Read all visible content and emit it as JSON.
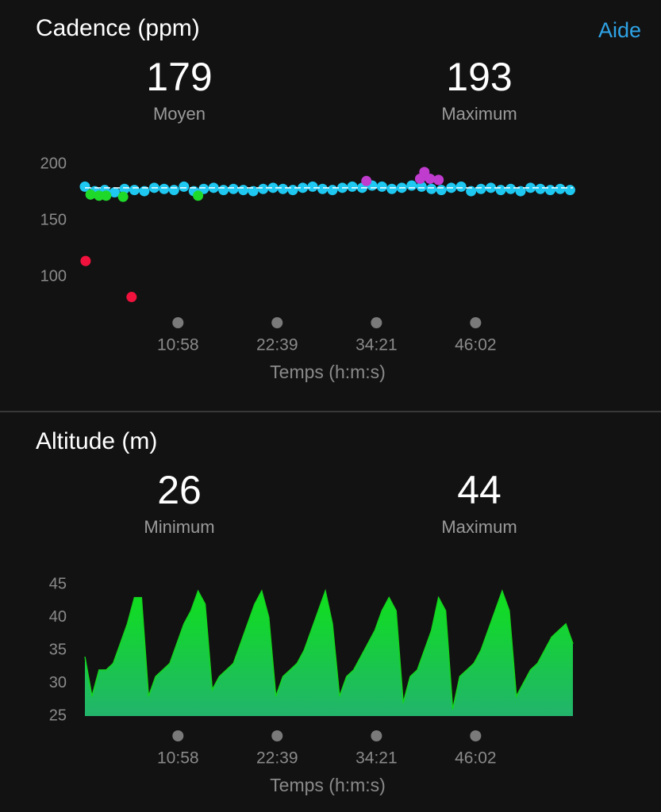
{
  "help": "Aide",
  "chart_data": [
    {
      "type": "scatter",
      "title": "Cadence (ppm)",
      "stats": [
        {
          "value": 179,
          "label": "Moyen"
        },
        {
          "value": 193,
          "label": "Maximum"
        }
      ],
      "x_label": "Temps (h:m:s)",
      "xlim": [
        0,
        3450
      ],
      "xticks": [
        {
          "value": 658,
          "label": "10:58"
        },
        {
          "value": 1359,
          "label": "22:39"
        },
        {
          "value": 2061,
          "label": "34:21"
        },
        {
          "value": 2762,
          "label": "46:02"
        }
      ],
      "ylim": [
        75,
        200
      ],
      "yticks": [
        100,
        150,
        200
      ],
      "series": [
        {
          "color": "#1ec8f0",
          "x": [
            0,
            70,
            140,
            210,
            280,
            350,
            420,
            490,
            560,
            630,
            700,
            770,
            840,
            910,
            980,
            1050,
            1120,
            1190,
            1260,
            1330,
            1400,
            1470,
            1540,
            1610,
            1680,
            1750,
            1820,
            1890,
            1960,
            2030,
            2100,
            2170,
            2240,
            2310,
            2380,
            2450,
            2520,
            2590,
            2660,
            2730,
            2800,
            2870,
            2940,
            3010,
            3080,
            3150,
            3220,
            3290,
            3360,
            3430
          ],
          "values": [
            180,
            176,
            177,
            175,
            178,
            177,
            176,
            179,
            178,
            177,
            180,
            176,
            178,
            179,
            177,
            178,
            177,
            176,
            178,
            179,
            178,
            177,
            179,
            180,
            178,
            177,
            179,
            180,
            179,
            181,
            180,
            178,
            179,
            181,
            180,
            178,
            177,
            179,
            180,
            176,
            178,
            179,
            177,
            178,
            176,
            179,
            178,
            177,
            178,
            177
          ]
        },
        {
          "color": "#1fd92a",
          "x": [
            40,
            100,
            150,
            270,
            800
          ],
          "values": [
            173,
            172,
            172,
            171,
            172
          ]
        },
        {
          "color": "#c03ccf",
          "x": [
            1990,
            2370,
            2400,
            2440,
            2500
          ],
          "values": [
            185,
            187,
            193,
            187,
            186
          ]
        },
        {
          "color": "#f0123c",
          "x": [
            5,
            330
          ],
          "values": [
            114,
            82
          ]
        }
      ]
    },
    {
      "type": "area",
      "title": "Altitude (m)",
      "stats": [
        {
          "value": 26,
          "label": "Minimum"
        },
        {
          "value": 44,
          "label": "Maximum"
        }
      ],
      "x_label": "Temps (h:m:s)",
      "xlim": [
        0,
        3450
      ],
      "xticks": [
        {
          "value": 658,
          "label": "10:58"
        },
        {
          "value": 1359,
          "label": "22:39"
        },
        {
          "value": 2061,
          "label": "34:21"
        },
        {
          "value": 2762,
          "label": "46:02"
        }
      ],
      "ylim": [
        25,
        45
      ],
      "yticks": [
        25,
        30,
        35,
        40,
        45
      ],
      "x": [
        0,
        50,
        100,
        150,
        200,
        250,
        300,
        350,
        400,
        450,
        500,
        550,
        600,
        650,
        700,
        750,
        800,
        850,
        900,
        950,
        1000,
        1050,
        1100,
        1150,
        1200,
        1250,
        1300,
        1350,
        1400,
        1450,
        1500,
        1550,
        1600,
        1650,
        1700,
        1750,
        1800,
        1850,
        1900,
        1950,
        2000,
        2050,
        2100,
        2150,
        2200,
        2250,
        2300,
        2350,
        2400,
        2450,
        2500,
        2550,
        2600,
        2650,
        2700,
        2750,
        2800,
        2850,
        2900,
        2950,
        3000,
        3050,
        3100,
        3150,
        3200,
        3250,
        3300,
        3350,
        3400,
        3450
      ],
      "values": [
        34,
        28,
        32,
        32,
        33,
        36,
        39,
        43,
        43,
        28,
        31,
        32,
        33,
        36,
        39,
        41,
        44,
        42,
        29,
        31,
        32,
        33,
        36,
        39,
        42,
        44,
        40,
        28,
        31,
        32,
        33,
        35,
        38,
        41,
        44,
        39,
        28,
        31,
        32,
        34,
        36,
        38,
        41,
        43,
        41,
        27,
        31,
        32,
        35,
        38,
        43,
        41,
        26,
        31,
        32,
        33,
        35,
        38,
        41,
        44,
        41,
        28,
        30,
        32,
        33,
        35,
        37,
        38,
        39,
        36
      ]
    }
  ]
}
